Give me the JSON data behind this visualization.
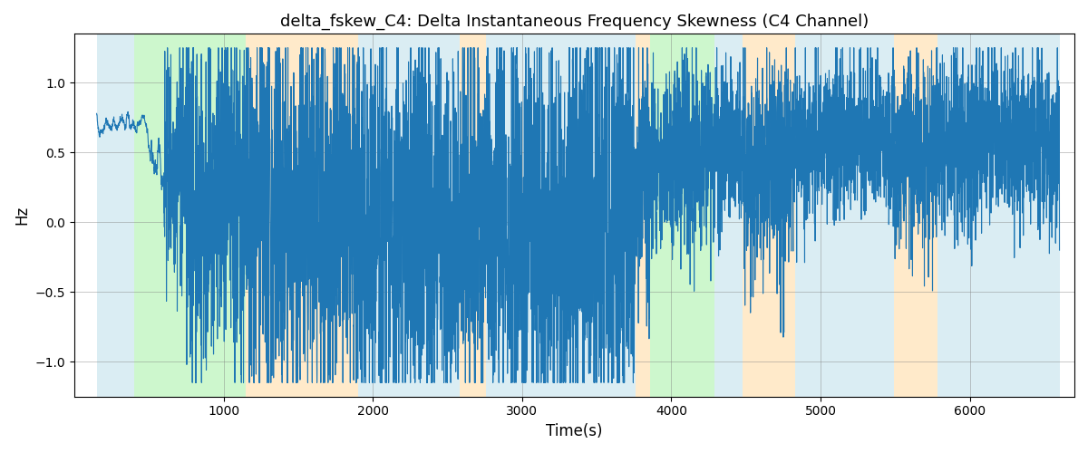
{
  "title": "delta_fskew_C4: Delta Instantaneous Frequency Skewness (C4 Channel)",
  "xlabel": "Time(s)",
  "ylabel": "Hz",
  "xlim": [
    0,
    6700
  ],
  "ylim": [
    -1.25,
    1.35
  ],
  "line_color": "#1f77b4",
  "line_width": 0.8,
  "grid": true,
  "background_regions": [
    {
      "xmin": 150,
      "xmax": 400,
      "color": "#add8e6",
      "alpha": 0.45
    },
    {
      "xmin": 400,
      "xmax": 1150,
      "color": "#90ee90",
      "alpha": 0.45
    },
    {
      "xmin": 1150,
      "xmax": 1900,
      "color": "#ffd9a0",
      "alpha": 0.55
    },
    {
      "xmin": 1900,
      "xmax": 2580,
      "color": "#add8e6",
      "alpha": 0.45
    },
    {
      "xmin": 2580,
      "xmax": 2760,
      "color": "#ffd9a0",
      "alpha": 0.55
    },
    {
      "xmin": 2760,
      "xmax": 3760,
      "color": "#add8e6",
      "alpha": 0.45
    },
    {
      "xmin": 3760,
      "xmax": 3860,
      "color": "#ffd9a0",
      "alpha": 0.55
    },
    {
      "xmin": 3860,
      "xmax": 4290,
      "color": "#90ee90",
      "alpha": 0.45
    },
    {
      "xmin": 4290,
      "xmax": 4480,
      "color": "#add8e6",
      "alpha": 0.45
    },
    {
      "xmin": 4480,
      "xmax": 4830,
      "color": "#ffd9a0",
      "alpha": 0.55
    },
    {
      "xmin": 4830,
      "xmax": 5490,
      "color": "#add8e6",
      "alpha": 0.45
    },
    {
      "xmin": 5490,
      "xmax": 5780,
      "color": "#ffd9a0",
      "alpha": 0.55
    },
    {
      "xmin": 5780,
      "xmax": 6600,
      "color": "#add8e6",
      "alpha": 0.45
    }
  ],
  "seed": 42,
  "x_start": 150,
  "x_end": 6600,
  "figsize": [
    12.0,
    5.0
  ],
  "dpi": 100
}
